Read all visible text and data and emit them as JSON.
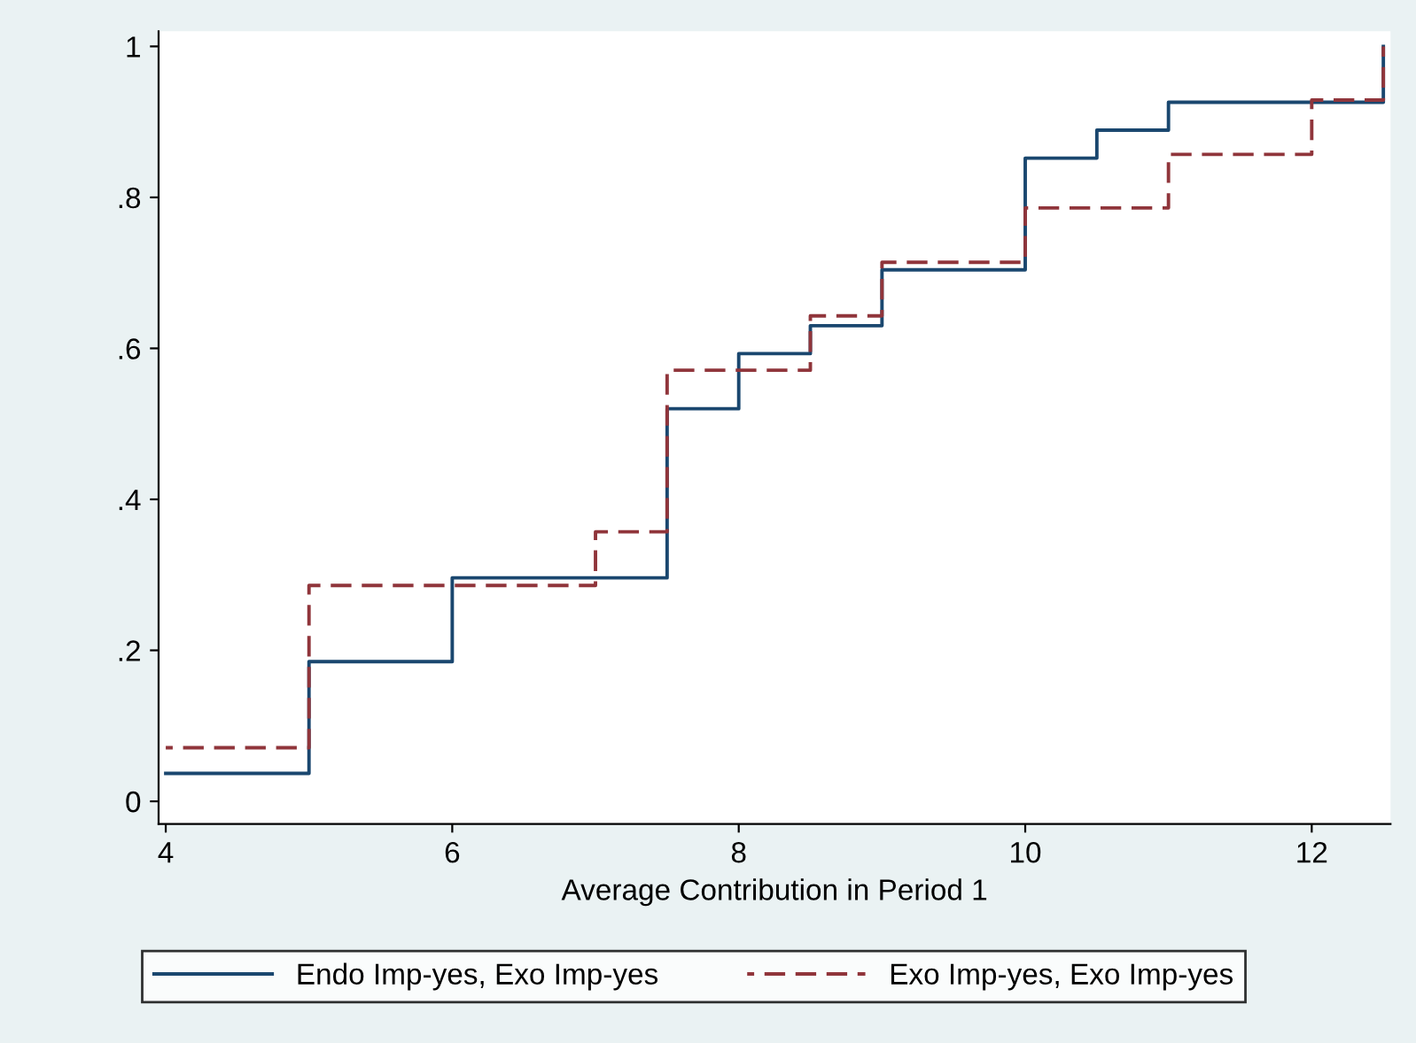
{
  "chart_data": {
    "type": "step",
    "xlabel": "Average Contribution in Period 1",
    "series": [
      {
        "name": "Endo Imp-yes, Exo Imp-yes",
        "color": "#1a476f",
        "line_style": "solid",
        "x": [
          4,
          5,
          6,
          7.5,
          8,
          8.5,
          9,
          10,
          10.5,
          11,
          12.5
        ],
        "values": [
          0.037,
          0.185,
          0.296,
          0.52,
          0.593,
          0.63,
          0.704,
          0.852,
          0.889,
          0.926,
          1
        ]
      },
      {
        "name": "Exo Imp-yes, Exo Imp-yes",
        "color": "#90353b",
        "line_style": "dashed",
        "x": [
          4,
          5,
          7,
          7.5,
          8.5,
          9,
          10,
          11,
          12,
          12.5
        ],
        "values": [
          0.071,
          0.286,
          0.357,
          0.571,
          0.643,
          0.714,
          0.786,
          0.857,
          0.929,
          1
        ]
      }
    ],
    "xlim": [
      3.95,
      12.55
    ],
    "xticks": [
      4,
      6,
      8,
      10,
      12
    ],
    "ylim": [
      -0.03,
      1.02
    ],
    "yticks": [
      0,
      {
        "value": 0.2,
        "label": ".2"
      },
      {
        "value": 0.4,
        "label": ".4"
      },
      {
        "value": 0.6,
        "label": ".6"
      },
      {
        "value": 0.8,
        "label": ".8"
      },
      1
    ],
    "grid": false,
    "legend": "bottom"
  }
}
